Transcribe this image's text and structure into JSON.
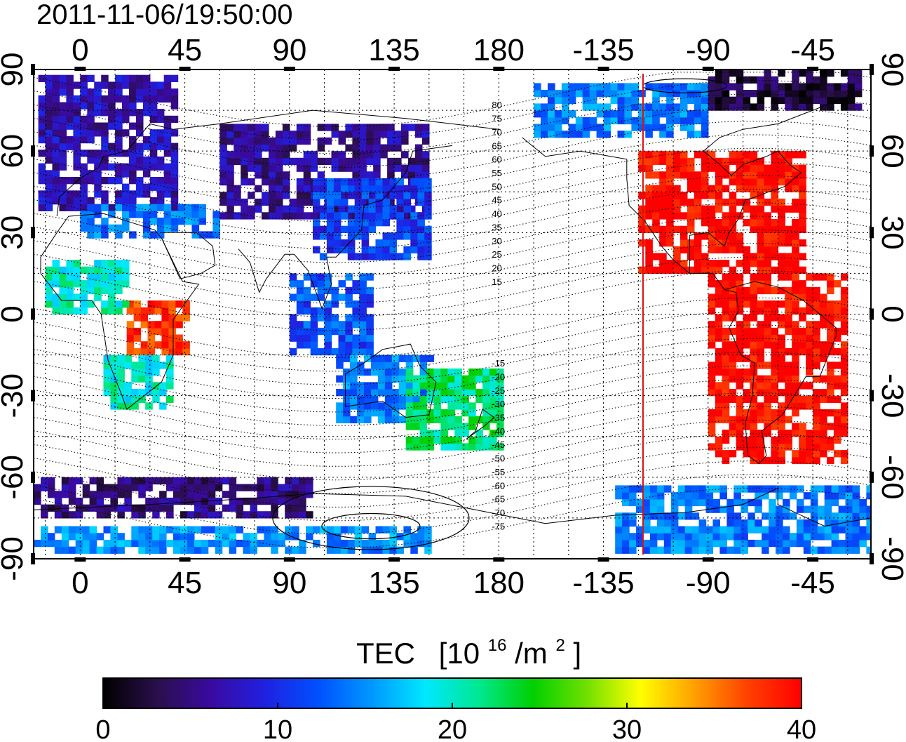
{
  "title": "2011-11-06/19:50:00",
  "map": {
    "type": "global TEC map",
    "projection": "equirectangular",
    "lon_range": [
      -20,
      340
    ],
    "lat_range": [
      -90,
      90
    ],
    "lon_ticks": [
      0,
      45,
      90,
      135,
      180,
      225,
      270,
      315
    ],
    "lon_tick_labels": [
      "0",
      "45",
      "90",
      "135",
      "180",
      "-135",
      "-90",
      "-45"
    ],
    "lat_ticks": [
      90,
      60,
      30,
      0,
      -30,
      -60,
      -90
    ],
    "lat_tick_labels": [
      "90",
      "60",
      "30",
      "0",
      "-30",
      "-60",
      "-90"
    ],
    "grid": "dotted, every 15 degrees",
    "terminator_line_lon": 242,
    "terminator_line_color": "#dd1111",
    "contour_labels": [
      "80",
      "75",
      "70",
      "65",
      "60",
      "55",
      "50",
      "45",
      "40",
      "35",
      "30",
      "25",
      "20",
      "15",
      "-15",
      "-20",
      "-25",
      "-30",
      "-35",
      "-40",
      "-45",
      "-50",
      "-55",
      "-60",
      "-65",
      "-70",
      "-75"
    ]
  },
  "colorbar": {
    "label": "TEC",
    "unit_prefix": "[10",
    "unit_exp": "16",
    "unit_mid": "/m",
    "unit_exp2": "2",
    "unit_suffix": "]",
    "min": 0,
    "max": 40,
    "ticks": [
      "0",
      "10",
      "20",
      "30",
      "40"
    ],
    "colors": [
      "#000000",
      "#2a0f4a",
      "#3a0aa0",
      "#2020e0",
      "#0050ff",
      "#0098ff",
      "#00e8ff",
      "#00e890",
      "#00d000",
      "#70e000",
      "#ffff00",
      "#ffa000",
      "#ff4000",
      "#ff0000"
    ]
  },
  "chart_data": {
    "type": "heatmap",
    "title": "2011-11-06/19:50:00",
    "xlabel": "",
    "ylabel": "",
    "x_range": [
      -20,
      340
    ],
    "y_range": [
      -90,
      90
    ],
    "value_label": "TEC [10^16/m^2]",
    "value_range": [
      0,
      40
    ],
    "regions": [
      {
        "lon": [
          -18,
          40
        ],
        "lat": [
          38,
          88
        ],
        "tec": 7
      },
      {
        "lon": [
          0,
          60
        ],
        "lat": [
          28,
          40
        ],
        "tec": 14
      },
      {
        "lon": [
          60,
          150
        ],
        "lat": [
          35,
          70
        ],
        "tec": 6
      },
      {
        "lon": [
          100,
          150
        ],
        "lat": [
          20,
          48
        ],
        "tec": 11
      },
      {
        "lon": [
          90,
          125
        ],
        "lat": [
          -15,
          15
        ],
        "tec": 12
      },
      {
        "lon": [
          110,
          150
        ],
        "lat": [
          -40,
          -15
        ],
        "tec": 14
      },
      {
        "lon": [
          140,
          180
        ],
        "lat": [
          -50,
          -20
        ],
        "tec": 22
      },
      {
        "lon": [
          20,
          45
        ],
        "lat": [
          -15,
          5
        ],
        "tec": 38
      },
      {
        "lon": [
          10,
          40
        ],
        "lat": [
          -35,
          -15
        ],
        "tec": 20
      },
      {
        "lon": [
          -15,
          20
        ],
        "lat": [
          0,
          20
        ],
        "tec": 20
      },
      {
        "lon": [
          195,
          270
        ],
        "lat": [
          65,
          85
        ],
        "tec": 14
      },
      {
        "lon": [
          270,
          335
        ],
        "lat": [
          75,
          88
        ],
        "tec": 3
      },
      {
        "lon": [
          240,
          310
        ],
        "lat": [
          15,
          60
        ],
        "tec": 40
      },
      {
        "lon": [
          270,
          330
        ],
        "lat": [
          -55,
          15
        ],
        "tec": 40
      },
      {
        "lon": [
          230,
          340
        ],
        "lat": [
          -88,
          -65
        ],
        "tec": 14
      },
      {
        "lon": [
          -20,
          150
        ],
        "lat": [
          -88,
          -80
        ],
        "tec": 15
      },
      {
        "lon": [
          -20,
          100
        ],
        "lat": [
          -75,
          -62
        ],
        "tec": 5
      }
    ]
  }
}
